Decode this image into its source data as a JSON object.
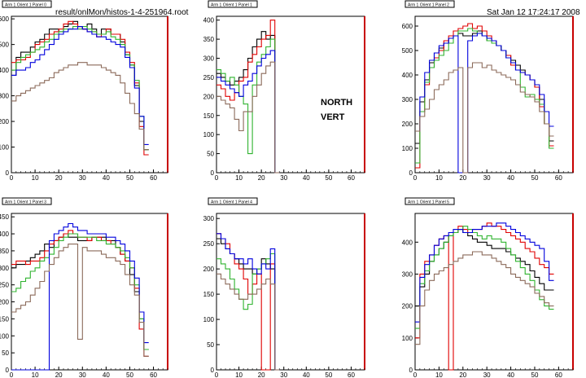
{
  "header": {
    "file_path": "result/onlMon/histos-1-4-251964.root",
    "datetime": "Sat Jan 12 17:24:17 2008"
  },
  "labels": {
    "arm_side": "NORTH",
    "orientation": "VERT"
  },
  "colors": {
    "black": "#000000",
    "red": "#e00000",
    "green": "#2fb32f",
    "blue": "#0000dd",
    "brown": "#8b6a5a",
    "frame_red": "#c80000"
  },
  "chart_data": [
    {
      "type": "line",
      "title": "Arm 1 Orient 1 Panel 0",
      "xlim": [
        0,
        66
      ],
      "ylim": [
        0,
        610
      ],
      "xticks": [
        0,
        10,
        20,
        30,
        40,
        50,
        60
      ],
      "yticks": [
        0,
        100,
        200,
        300,
        400,
        500,
        600
      ],
      "series": [
        {
          "color": "black",
          "x0": 0,
          "step": 2,
          "values": [
            380,
            450,
            470,
            470,
            490,
            510,
            520,
            540,
            560,
            560,
            550,
            570,
            580,
            590,
            570,
            560,
            580,
            560,
            540,
            560,
            560,
            540,
            540,
            510,
            460,
            420,
            340,
            200,
            90
          ]
        },
        {
          "color": "red",
          "x0": 0,
          "step": 2,
          "values": [
            430,
            440,
            440,
            450,
            470,
            500,
            510,
            520,
            540,
            550,
            560,
            580,
            590,
            580,
            570,
            560,
            550,
            550,
            530,
            540,
            560,
            540,
            540,
            520,
            470,
            430,
            350,
            180,
            70
          ]
        },
        {
          "color": "green",
          "x0": 0,
          "step": 2,
          "values": [
            400,
            430,
            450,
            460,
            470,
            480,
            490,
            510,
            520,
            540,
            550,
            560,
            560,
            570,
            560,
            570,
            560,
            550,
            540,
            540,
            550,
            530,
            520,
            500,
            460,
            420,
            360,
            220,
            90
          ]
        },
        {
          "color": "blue",
          "x0": 0,
          "step": 2,
          "values": [
            380,
            400,
            400,
            410,
            430,
            440,
            460,
            480,
            500,
            520,
            540,
            550,
            560,
            560,
            570,
            560,
            550,
            540,
            530,
            530,
            520,
            510,
            500,
            490,
            450,
            410,
            330,
            220,
            110
          ]
        },
        {
          "color": "brown",
          "x0": 0,
          "step": 2,
          "values": [
            280,
            300,
            310,
            320,
            330,
            340,
            350,
            360,
            370,
            390,
            400,
            410,
            420,
            420,
            430,
            430,
            420,
            420,
            420,
            410,
            400,
            390,
            380,
            350,
            310,
            270,
            230,
            170,
            90
          ]
        }
      ]
    },
    {
      "type": "line",
      "title": "Arm 1 Orient 1 Panel 1",
      "xlim": [
        0,
        66
      ],
      "ylim": [
        0,
        410
      ],
      "xticks": [
        0,
        10,
        20,
        30,
        40,
        50,
        60
      ],
      "yticks": [
        0,
        50,
        100,
        150,
        200,
        250,
        300,
        350,
        400
      ],
      "series": [
        {
          "color": "black",
          "x0": 0,
          "step": 2,
          "values": [
            260,
            250,
            240,
            230,
            240,
            250,
            270,
            300,
            330,
            350,
            370,
            350,
            360,
            0
          ]
        },
        {
          "color": "red",
          "x0": 0,
          "step": 2,
          "values": [
            230,
            220,
            200,
            190,
            210,
            240,
            250,
            290,
            310,
            330,
            350,
            360,
            400,
            0
          ]
        },
        {
          "color": "green",
          "x0": 0,
          "step": 2,
          "values": [
            270,
            260,
            240,
            250,
            230,
            200,
            180,
            50,
            230,
            290,
            310,
            330,
            350,
            0
          ]
        },
        {
          "color": "blue",
          "x0": 0,
          "step": 2,
          "values": [
            250,
            240,
            230,
            220,
            210,
            200,
            230,
            240,
            260,
            280,
            300,
            310,
            320,
            0
          ]
        },
        {
          "color": "brown",
          "x0": 0,
          "step": 2,
          "values": [
            200,
            190,
            180,
            170,
            140,
            110,
            160,
            160,
            200,
            230,
            260,
            280,
            290,
            0
          ]
        }
      ]
    },
    {
      "type": "line",
      "title": "Arm 1 Orient 1 Panel 2",
      "xlim": [
        0,
        66
      ],
      "ylim": [
        0,
        640
      ],
      "xticks": [
        0,
        10,
        20,
        30,
        40,
        50,
        60
      ],
      "yticks": [
        0,
        100,
        200,
        300,
        400,
        500,
        600
      ],
      "series": [
        {
          "color": "black",
          "x0": 0,
          "step": 2,
          "values": [
            120,
            290,
            380,
            450,
            490,
            510,
            530,
            550,
            560,
            570,
            560,
            560,
            570,
            580,
            560,
            540,
            540,
            520,
            500,
            480,
            460,
            440,
            420,
            400,
            380,
            350,
            300,
            200,
            130
          ]
        },
        {
          "color": "red",
          "x0": 0,
          "step": 2,
          "values": [
            20,
            250,
            360,
            430,
            470,
            500,
            540,
            560,
            580,
            590,
            600,
            610,
            590,
            600,
            580,
            560,
            540,
            520,
            500,
            480,
            440,
            420,
            410,
            400,
            380,
            350,
            270,
            200,
            110
          ]
        },
        {
          "color": "green",
          "x0": 0,
          "step": 2,
          "values": [
            40,
            250,
            370,
            430,
            460,
            480,
            500,
            530,
            560,
            580,
            580,
            590,
            580,
            570,
            560,
            540,
            530,
            520,
            500,
            470,
            450,
            420,
            350,
            310,
            320,
            300,
            280,
            200,
            100
          ]
        },
        {
          "color": "blue",
          "x0": 0,
          "step": 2,
          "values": [
            170,
            310,
            410,
            460,
            490,
            520,
            530,
            550,
            560,
            0,
            0,
            540,
            560,
            570,
            560,
            550,
            540,
            520,
            500,
            470,
            450,
            420,
            410,
            400,
            380,
            360,
            320,
            250,
            190
          ]
        },
        {
          "color": "brown",
          "x0": 0,
          "step": 2,
          "values": [
            170,
            230,
            260,
            300,
            340,
            360,
            380,
            410,
            420,
            430,
            0,
            430,
            450,
            450,
            430,
            440,
            420,
            410,
            400,
            390,
            380,
            360,
            330,
            320,
            310,
            290,
            250,
            200,
            150
          ]
        }
      ]
    },
    {
      "type": "line",
      "title": "Arm 1 Orient 1 Panel 3",
      "xlim": [
        0,
        66
      ],
      "ylim": [
        0,
        460
      ],
      "xticks": [
        0,
        10,
        20,
        30,
        40,
        50,
        60
      ],
      "yticks": [
        0,
        50,
        100,
        150,
        200,
        250,
        300,
        350,
        400,
        450
      ],
      "series": [
        {
          "color": "black",
          "x0": 0,
          "step": 2,
          "values": [
            300,
            310,
            310,
            320,
            330,
            340,
            350,
            370,
            360,
            380,
            390,
            400,
            390,
            390,
            380,
            380,
            380,
            390,
            390,
            390,
            380,
            380,
            360,
            340,
            320,
            280,
            230,
            150,
            60
          ]
        },
        {
          "color": "red",
          "x0": 0,
          "step": 2,
          "values": [
            310,
            320,
            320,
            310,
            320,
            320,
            330,
            350,
            370,
            380,
            390,
            400,
            410,
            400,
            390,
            390,
            380,
            390,
            390,
            380,
            380,
            370,
            360,
            340,
            320,
            300,
            240,
            120,
            40
          ]
        },
        {
          "color": "green",
          "x0": 0,
          "step": 2,
          "values": [
            230,
            240,
            260,
            270,
            290,
            300,
            320,
            330,
            340,
            360,
            380,
            390,
            400,
            400,
            390,
            390,
            390,
            390,
            380,
            380,
            370,
            370,
            360,
            350,
            330,
            300,
            250,
            150,
            60
          ]
        },
        {
          "color": "blue",
          "x0": 0,
          "step": 2,
          "values": [
            0,
            0,
            0,
            0,
            0,
            0,
            0,
            0,
            380,
            400,
            410,
            420,
            430,
            420,
            410,
            410,
            400,
            400,
            400,
            400,
            390,
            390,
            380,
            370,
            350,
            320,
            270,
            170,
            80
          ]
        },
        {
          "color": "brown",
          "x0": 0,
          "step": 2,
          "values": [
            170,
            180,
            190,
            200,
            220,
            240,
            260,
            290,
            310,
            330,
            350,
            360,
            370,
            370,
            90,
            360,
            350,
            350,
            350,
            340,
            330,
            330,
            320,
            310,
            280,
            250,
            220,
            140,
            40
          ]
        }
      ]
    },
    {
      "type": "line",
      "title": "Arm 1 Orient 1 Panel 4",
      "xlim": [
        0,
        66
      ],
      "ylim": [
        0,
        310
      ],
      "xticks": [
        0,
        10,
        20,
        30,
        40,
        50,
        60
      ],
      "yticks": [
        0,
        50,
        100,
        150,
        200,
        250,
        300
      ],
      "series": [
        {
          "color": "black",
          "x0": 0,
          "step": 2,
          "values": [
            260,
            250,
            240,
            230,
            220,
            210,
            200,
            200,
            190,
            200,
            220,
            210,
            200,
            0
          ]
        },
        {
          "color": "red",
          "x0": 0,
          "step": 2,
          "values": [
            270,
            260,
            250,
            230,
            210,
            200,
            180,
            150,
            170,
            190,
            0,
            0,
            210,
            0
          ]
        },
        {
          "color": "green",
          "x0": 0,
          "step": 2,
          "values": [
            220,
            210,
            200,
            180,
            160,
            140,
            120,
            130,
            190,
            200,
            210,
            220,
            230,
            0
          ]
        },
        {
          "color": "blue",
          "x0": 0,
          "step": 2,
          "values": [
            270,
            260,
            240,
            230,
            220,
            220,
            210,
            220,
            200,
            190,
            210,
            200,
            240,
            0
          ]
        },
        {
          "color": "brown",
          "x0": 0,
          "step": 2,
          "values": [
            190,
            180,
            170,
            160,
            150,
            140,
            140,
            150,
            150,
            160,
            170,
            180,
            170,
            0
          ]
        }
      ]
    },
    {
      "type": "line",
      "title": "Arm 1 Orient 1 Panel 5",
      "xlim": [
        0,
        66
      ],
      "ylim": [
        0,
        490
      ],
      "xticks": [
        0,
        10,
        20,
        30,
        40,
        50,
        60
      ],
      "yticks": [
        0,
        100,
        200,
        300,
        400
      ],
      "series": [
        {
          "color": "black",
          "x0": 0,
          "step": 2,
          "values": [
            200,
            260,
            300,
            340,
            360,
            380,
            400,
            420,
            430,
            440,
            430,
            420,
            410,
            400,
            400,
            390,
            380,
            380,
            380,
            370,
            360,
            350,
            340,
            330,
            310,
            290,
            270,
            250,
            250
          ]
        },
        {
          "color": "red",
          "x0": 0,
          "step": 2,
          "values": [
            100,
            300,
            340,
            360,
            390,
            410,
            420,
            0,
            430,
            450,
            440,
            430,
            440,
            440,
            450,
            460,
            450,
            450,
            440,
            430,
            420,
            410,
            400,
            380,
            370,
            350,
            330,
            320,
            300
          ]
        },
        {
          "color": "green",
          "x0": 0,
          "step": 2,
          "values": [
            130,
            270,
            310,
            340,
            360,
            380,
            400,
            420,
            430,
            440,
            450,
            440,
            430,
            420,
            410,
            420,
            410,
            410,
            400,
            380,
            360,
            340,
            320,
            300,
            280,
            250,
            220,
            200,
            190
          ]
        },
        {
          "color": "blue",
          "x0": 0,
          "step": 2,
          "values": [
            150,
            290,
            330,
            360,
            390,
            410,
            420,
            430,
            440,
            440,
            430,
            430,
            440,
            440,
            450,
            450,
            450,
            460,
            460,
            450,
            440,
            430,
            420,
            410,
            400,
            390,
            380,
            340,
            280
          ]
        },
        {
          "color": "brown",
          "x0": 0,
          "step": 2,
          "values": [
            80,
            200,
            250,
            280,
            300,
            310,
            320,
            330,
            340,
            350,
            360,
            360,
            370,
            370,
            360,
            360,
            350,
            340,
            330,
            320,
            300,
            290,
            280,
            270,
            260,
            240,
            230,
            210,
            200
          ]
        }
      ]
    }
  ]
}
